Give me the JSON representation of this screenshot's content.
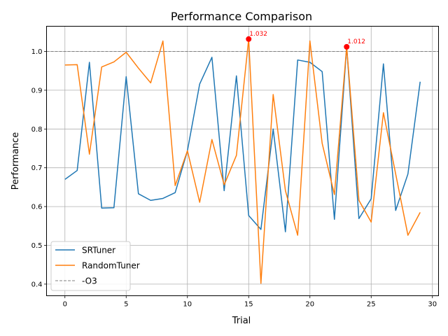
{
  "chart_data": {
    "type": "line",
    "title": "Performance Comparison",
    "xlabel": "Trial",
    "ylabel": "Performance",
    "xlim": [
      -1.5,
      30.5
    ],
    "ylim": [
      0.37,
      1.065
    ],
    "xticks": [
      0,
      5,
      10,
      15,
      20,
      25,
      30
    ],
    "yticks": [
      0.4,
      0.5,
      0.6,
      0.7,
      0.8,
      0.9,
      1.0
    ],
    "xtick_labels": [
      "0",
      "5",
      "10",
      "15",
      "20",
      "25",
      "30"
    ],
    "ytick_labels": [
      "0.4",
      "0.5",
      "0.6",
      "0.7",
      "0.8",
      "0.9",
      "1.0"
    ],
    "grid": true,
    "legend_position": "lower-left",
    "x": [
      0,
      1,
      2,
      3,
      4,
      5,
      6,
      7,
      8,
      9,
      10,
      11,
      12,
      13,
      14,
      15,
      16,
      17,
      18,
      19,
      20,
      21,
      22,
      23,
      24,
      25,
      26,
      27,
      28,
      29
    ],
    "series": [
      {
        "name": "SRTuner",
        "color": "#1f77b4",
        "values": [
          0.67,
          0.693,
          0.972,
          0.596,
          0.597,
          0.935,
          0.633,
          0.616,
          0.621,
          0.636,
          0.744,
          0.916,
          0.985,
          0.641,
          0.937,
          0.577,
          0.541,
          0.8,
          0.535,
          0.978,
          0.972,
          0.948,
          0.567,
          1.012,
          0.569,
          0.62,
          0.968,
          0.59,
          0.684,
          0.922
        ]
      },
      {
        "name": "RandomTuner",
        "color": "#ff7f0e",
        "values": [
          0.965,
          0.966,
          0.735,
          0.96,
          0.973,
          0.998,
          0.957,
          0.919,
          1.027,
          0.654,
          0.744,
          0.611,
          0.773,
          0.656,
          0.732,
          1.032,
          0.402,
          0.889,
          0.641,
          0.526,
          1.027,
          0.763,
          0.631,
          1.012,
          0.616,
          0.56,
          0.842,
          0.684,
          0.526,
          0.585
        ]
      }
    ],
    "reference_line": {
      "name": "-O3",
      "value": 1.0,
      "color": "#808080"
    },
    "annotations": [
      {
        "x": 15,
        "y": 1.032,
        "label": "1.032",
        "color": "#ff0000"
      },
      {
        "x": 23,
        "y": 1.012,
        "label": "1.012",
        "color": "#ff0000"
      }
    ]
  }
}
